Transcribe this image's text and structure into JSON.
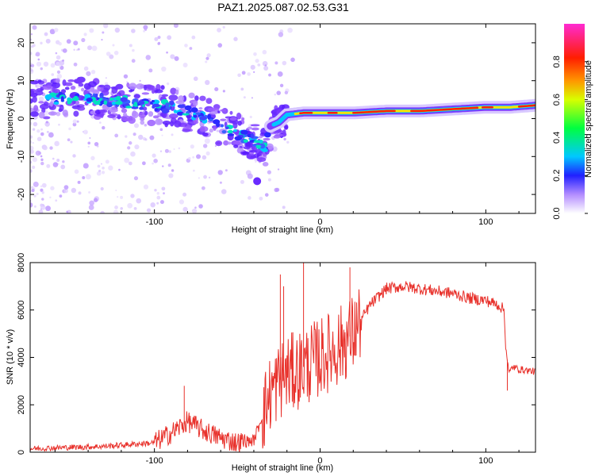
{
  "title": "PAZ1.2025.087.02.53.G31",
  "chart_data": [
    {
      "type": "heatmap",
      "xlabel": "Height of straight line (km)",
      "ylabel": "Frequency (Hz)",
      "xlim": [
        -175,
        130
      ],
      "ylim": [
        -25,
        25
      ],
      "xticks": [
        -100,
        0,
        100
      ],
      "yticks": [
        -20,
        -10,
        0,
        10,
        20
      ],
      "ridge": {
        "x": [
          -170,
          -150,
          -130,
          -110,
          -90,
          -70,
          -55,
          -45,
          -38,
          -33,
          -30,
          -25,
          -20,
          -10,
          0,
          20,
          40,
          60,
          80,
          100,
          115,
          130
        ],
        "y": [
          5,
          5.5,
          5,
          4,
          3,
          0.5,
          -3,
          -5,
          -6,
          -8,
          -2,
          -1,
          1,
          1.5,
          1.5,
          1.5,
          2,
          2,
          2.5,
          3,
          3,
          3.5
        ]
      },
      "colorbar": {
        "label": "Normalized spectral amplitude",
        "ticks": [
          "0.0",
          "0.2",
          "0.4",
          "0.6",
          "0.8"
        ],
        "range": [
          0,
          1
        ]
      }
    },
    {
      "type": "line",
      "xlabel": "Height of straight line (km)",
      "ylabel": "SNR (10 * v/v)",
      "xlim": [
        -175,
        130
      ],
      "ylim": [
        0,
        8000
      ],
      "xticks": [
        -100,
        0,
        100
      ],
      "yticks": [
        0,
        2000,
        4000,
        6000,
        8000
      ],
      "color": "#e8312b",
      "series_anchor": {
        "x": [
          -175,
          -130,
          -100,
          -90,
          -80,
          -70,
          -60,
          -50,
          -40,
          -35,
          -30,
          -25,
          -20,
          -15,
          -10,
          -5,
          0,
          10,
          20,
          30,
          40,
          50,
          60,
          70,
          80,
          90,
          100,
          108,
          111,
          112,
          114,
          116,
          120,
          130
        ],
        "y": [
          150,
          250,
          400,
          800,
          1300,
          900,
          600,
          400,
          500,
          1500,
          2500,
          3000,
          3300,
          3400,
          3600,
          3800,
          4000,
          4400,
          5000,
          6200,
          6900,
          7000,
          6900,
          6800,
          6700,
          6500,
          6400,
          6200,
          6000,
          4500,
          3300,
          3600,
          3500,
          3400
        ]
      },
      "spikes": [
        {
          "x": -82,
          "y": 2800
        },
        {
          "x": -24,
          "y": 7500
        },
        {
          "x": -22,
          "y": 7000
        },
        {
          "x": -10,
          "y": 8000
        },
        {
          "x": 18,
          "y": 7800
        },
        {
          "x": 113,
          "y": 2600
        }
      ]
    }
  ]
}
